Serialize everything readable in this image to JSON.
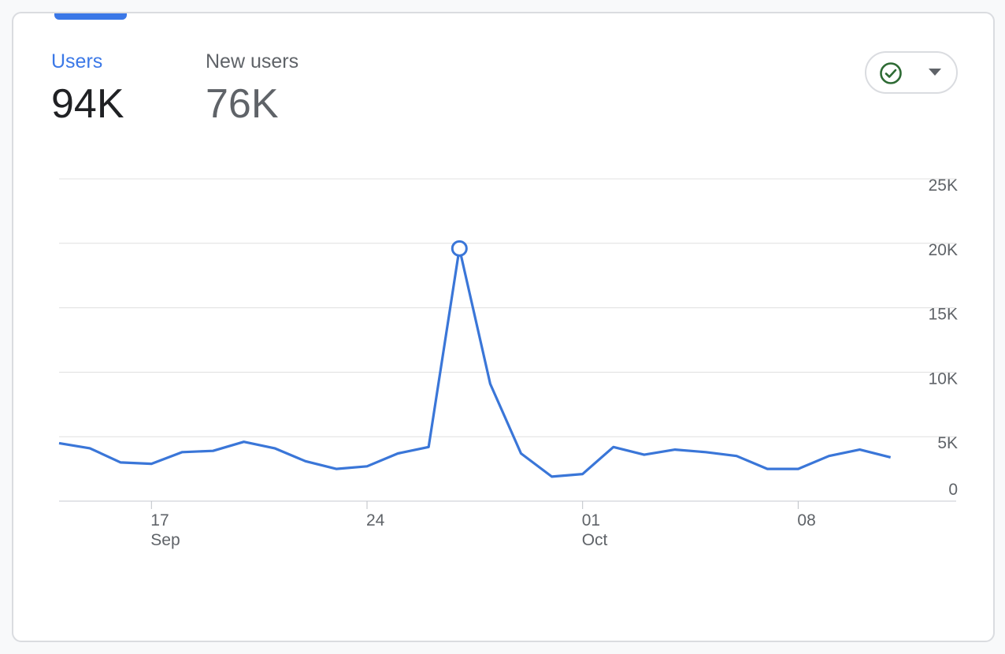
{
  "metrics": {
    "users": {
      "label": "Users",
      "value": "94K"
    },
    "new_users": {
      "label": "New users",
      "value": "76K"
    }
  },
  "compare_button": {
    "icon": "check-circle-icon",
    "caret": "caret-down-icon"
  },
  "colors": {
    "accent": "#3b78e7",
    "line": "#3a76d8",
    "check": "#2e6b34",
    "grid": "#e0e0e0",
    "text_muted": "#5f6368"
  },
  "chart_data": {
    "type": "line",
    "series": [
      {
        "name": "Users",
        "x": [
          "2023-09-14",
          "2023-09-15",
          "2023-09-16",
          "2023-09-17",
          "2023-09-18",
          "2023-09-19",
          "2023-09-20",
          "2023-09-21",
          "2023-09-22",
          "2023-09-23",
          "2023-09-24",
          "2023-09-25",
          "2023-09-26",
          "2023-09-27",
          "2023-09-28",
          "2023-09-29",
          "2023-09-30",
          "2023-10-01",
          "2023-10-02",
          "2023-10-03",
          "2023-10-04",
          "2023-10-05",
          "2023-10-06",
          "2023-10-07",
          "2023-10-08",
          "2023-10-09",
          "2023-10-10",
          "2023-10-11"
        ],
        "values": [
          4500,
          4100,
          3000,
          2900,
          3800,
          3900,
          4600,
          4100,
          3100,
          2500,
          2700,
          3700,
          4200,
          19600,
          9100,
          3700,
          1900,
          2100,
          4200,
          3600,
          4000,
          3800,
          3500,
          2500,
          2500,
          3500,
          4000,
          3400
        ]
      }
    ],
    "highlight_index": 13,
    "ylim": [
      0,
      25000
    ],
    "y_ticks": [
      0,
      5000,
      10000,
      15000,
      20000,
      25000
    ],
    "y_tick_labels": [
      "0",
      "5K",
      "10K",
      "15K",
      "20K",
      "25K"
    ],
    "x_ticks": [
      {
        "date": "2023-09-17",
        "day": "17",
        "month": "Sep"
      },
      {
        "date": "2023-09-24",
        "day": "24",
        "month": ""
      },
      {
        "date": "2023-10-01",
        "day": "01",
        "month": "Oct"
      },
      {
        "date": "2023-10-08",
        "day": "08",
        "month": ""
      }
    ],
    "grid": true,
    "y_axis_position": "right"
  }
}
